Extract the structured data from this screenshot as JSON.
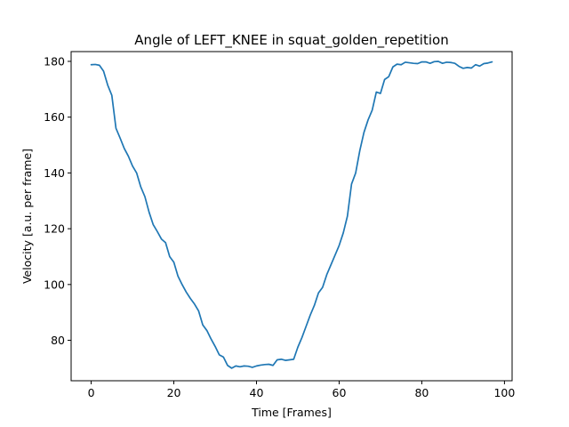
{
  "chart_data": {
    "type": "line",
    "title": "Angle of LEFT_KNEE in squat_golden_repetition",
    "xlabel": "Time [Frames]",
    "ylabel": "Velocity [a.u. per frame]",
    "xlim": [
      -4.85,
      101.85
    ],
    "ylim": [
      65.5,
      183.5
    ],
    "xticks": [
      0,
      20,
      40,
      60,
      80,
      100
    ],
    "yticks": [
      80,
      100,
      120,
      140,
      160,
      180
    ],
    "grid": false,
    "legend": "none",
    "series": [
      {
        "color": "#1f77b4",
        "x": [
          0,
          1,
          2,
          3,
          4,
          5,
          6,
          7,
          8,
          9,
          10,
          11,
          12,
          13,
          14,
          15,
          16,
          17,
          18,
          19,
          20,
          21,
          22,
          23,
          24,
          25,
          26,
          27,
          28,
          29,
          30,
          31,
          32,
          33,
          34,
          35,
          36,
          37,
          38,
          39,
          40,
          41,
          42,
          43,
          44,
          45,
          46,
          47,
          48,
          49,
          50,
          51,
          52,
          53,
          54,
          55,
          56,
          57,
          58,
          59,
          60,
          61,
          62,
          63,
          64,
          65,
          66,
          67,
          68,
          69,
          70,
          71,
          72,
          73,
          74,
          75,
          76,
          77,
          78,
          79,
          80,
          81,
          82,
          83,
          84,
          85,
          86,
          87,
          88,
          89,
          90,
          91,
          92,
          93,
          94,
          95,
          96,
          97
        ],
        "values": [
          178.8,
          178.9,
          178.6,
          176.5,
          171.5,
          167.8,
          156.0,
          152.5,
          148.8,
          146.0,
          142.5,
          140.0,
          135.0,
          131.5,
          126.0,
          121.5,
          119.0,
          116.3,
          115.0,
          110.0,
          108.0,
          103.0,
          100.0,
          97.3,
          95.0,
          93.0,
          90.5,
          85.5,
          83.5,
          80.5,
          77.8,
          74.8,
          74.0,
          71.0,
          70.0,
          70.8,
          70.5,
          70.8,
          70.7,
          70.3,
          70.8,
          71.1,
          71.3,
          71.4,
          71.0,
          73.0,
          73.2,
          72.8,
          73.0,
          73.2,
          77.5,
          81.0,
          85.0,
          89.0,
          92.5,
          97.0,
          99.0,
          103.5,
          107.0,
          110.5,
          114.0,
          118.5,
          124.5,
          136.0,
          140.0,
          148.0,
          154.5,
          159.0,
          162.5,
          169.0,
          168.5,
          173.5,
          174.5,
          178.0,
          179.0,
          178.8,
          179.7,
          179.5,
          179.3,
          179.2,
          179.8,
          179.8,
          179.3,
          179.9,
          180.0,
          179.3,
          179.7,
          179.6,
          179.3,
          178.2,
          177.5,
          177.8,
          177.6,
          178.8,
          178.3,
          179.2,
          179.4,
          179.8
        ]
      }
    ]
  }
}
